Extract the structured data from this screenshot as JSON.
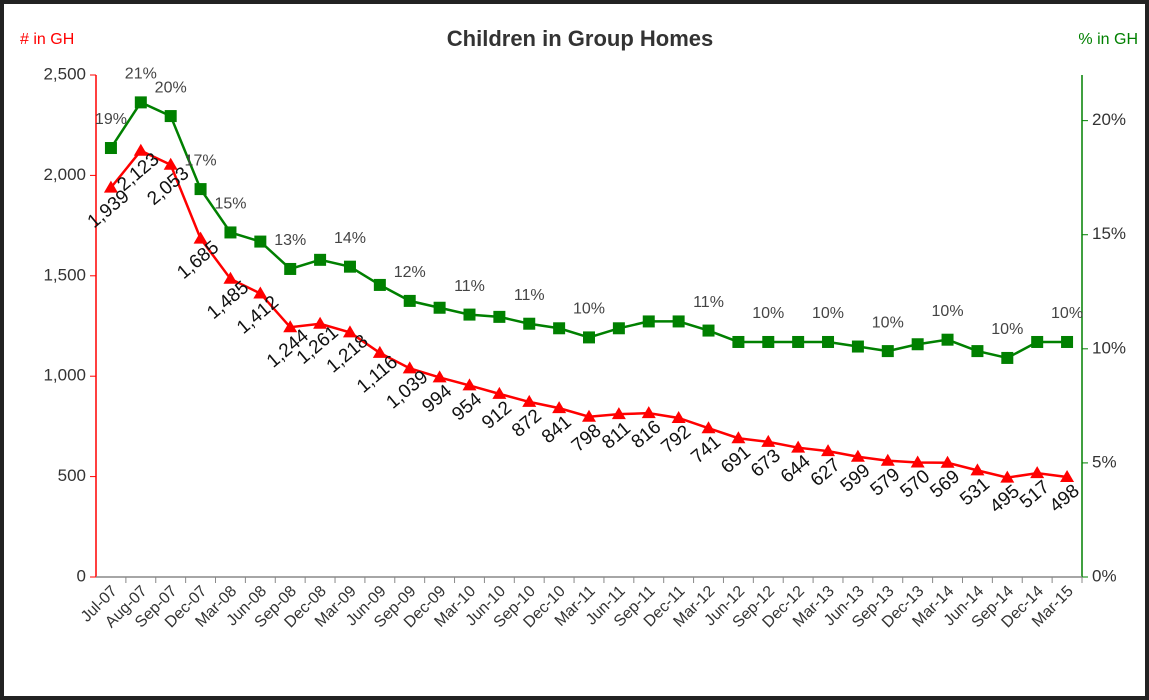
{
  "chart_data": {
    "type": "line",
    "title": "Children in Group Homes",
    "ylabel": "# in GH",
    "y2label": "% in GH",
    "categories": [
      "Jul-07",
      "Aug-07",
      "Sep-07",
      "Dec-07",
      "Mar-08",
      "Jun-08",
      "Sep-08",
      "Dec-08",
      "Mar-09",
      "Jun-09",
      "Sep-09",
      "Dec-09",
      "Mar-10",
      "Jun-10",
      "Sep-10",
      "Dec-10",
      "Mar-11",
      "Jun-11",
      "Sep-11",
      "Dec-11",
      "Mar-12",
      "Jun-12",
      "Sep-12",
      "Dec-12",
      "Mar-13",
      "Jun-13",
      "Sep-13",
      "Dec-13",
      "Mar-14",
      "Jun-14",
      "Sep-14",
      "Dec-14",
      "Mar-15"
    ],
    "series": [
      {
        "name": "# in GH",
        "color": "#ff0000",
        "marker": "triangle",
        "values": [
          1939,
          2123,
          2053,
          1685,
          1485,
          1412,
          1244,
          1261,
          1218,
          1116,
          1039,
          994,
          954,
          912,
          872,
          841,
          798,
          811,
          816,
          792,
          741,
          691,
          673,
          644,
          627,
          599,
          579,
          570,
          569,
          531,
          495,
          517,
          498
        ],
        "value_labels": [
          "1,939",
          "2,123",
          "2,053",
          "1,685",
          "1,485",
          "1,412",
          "1,244",
          "1,261",
          "1,218",
          "1,116",
          "1,039",
          "994",
          "954",
          "912",
          "872",
          "841",
          "798",
          "811",
          "816",
          "792",
          "741",
          "691",
          "673",
          "644",
          "627",
          "599",
          "579",
          "570",
          "569",
          "531",
          "495",
          "517",
          "498"
        ]
      },
      {
        "name": "% in GH",
        "color": "#008000",
        "marker": "square",
        "axis": "y2",
        "values": [
          18.8,
          20.8,
          20.2,
          17.0,
          15.1,
          14.7,
          13.5,
          13.9,
          13.6,
          12.8,
          12.1,
          11.8,
          11.5,
          11.4,
          11.1,
          10.9,
          10.5,
          10.9,
          11.2,
          11.2,
          10.8,
          10.3,
          10.3,
          10.3,
          10.3,
          10.1,
          9.9,
          10.2,
          10.4,
          9.9,
          9.6,
          10.3,
          10.3
        ],
        "value_labels": [
          "19%",
          "21%",
          "20%",
          "17%",
          "15%",
          null,
          "13%",
          null,
          "14%",
          null,
          "12%",
          null,
          "11%",
          null,
          "11%",
          null,
          "10%",
          null,
          null,
          null,
          "11%",
          null,
          "10%",
          null,
          "10%",
          null,
          "10%",
          null,
          "10%",
          null,
          "10%",
          null,
          "10%"
        ]
      }
    ],
    "ylim": [
      0,
      2500
    ],
    "yticks": [
      0,
      500,
      {
        "value": 1000,
        "label": "1,000"
      },
      {
        "value": 1500,
        "label": "1,500"
      },
      {
        "value": 2000,
        "label": "2,000"
      },
      {
        "value": 2500,
        "label": "2,500"
      }
    ],
    "y2lim": [
      0,
      22
    ],
    "y2ticks": [
      {
        "value": 0,
        "label": "0%"
      },
      {
        "value": 5,
        "label": "5%"
      },
      {
        "value": 10,
        "label": "10%"
      },
      {
        "value": 15,
        "label": "15%"
      },
      {
        "value": 20,
        "label": "20%"
      }
    ],
    "grid": false
  }
}
